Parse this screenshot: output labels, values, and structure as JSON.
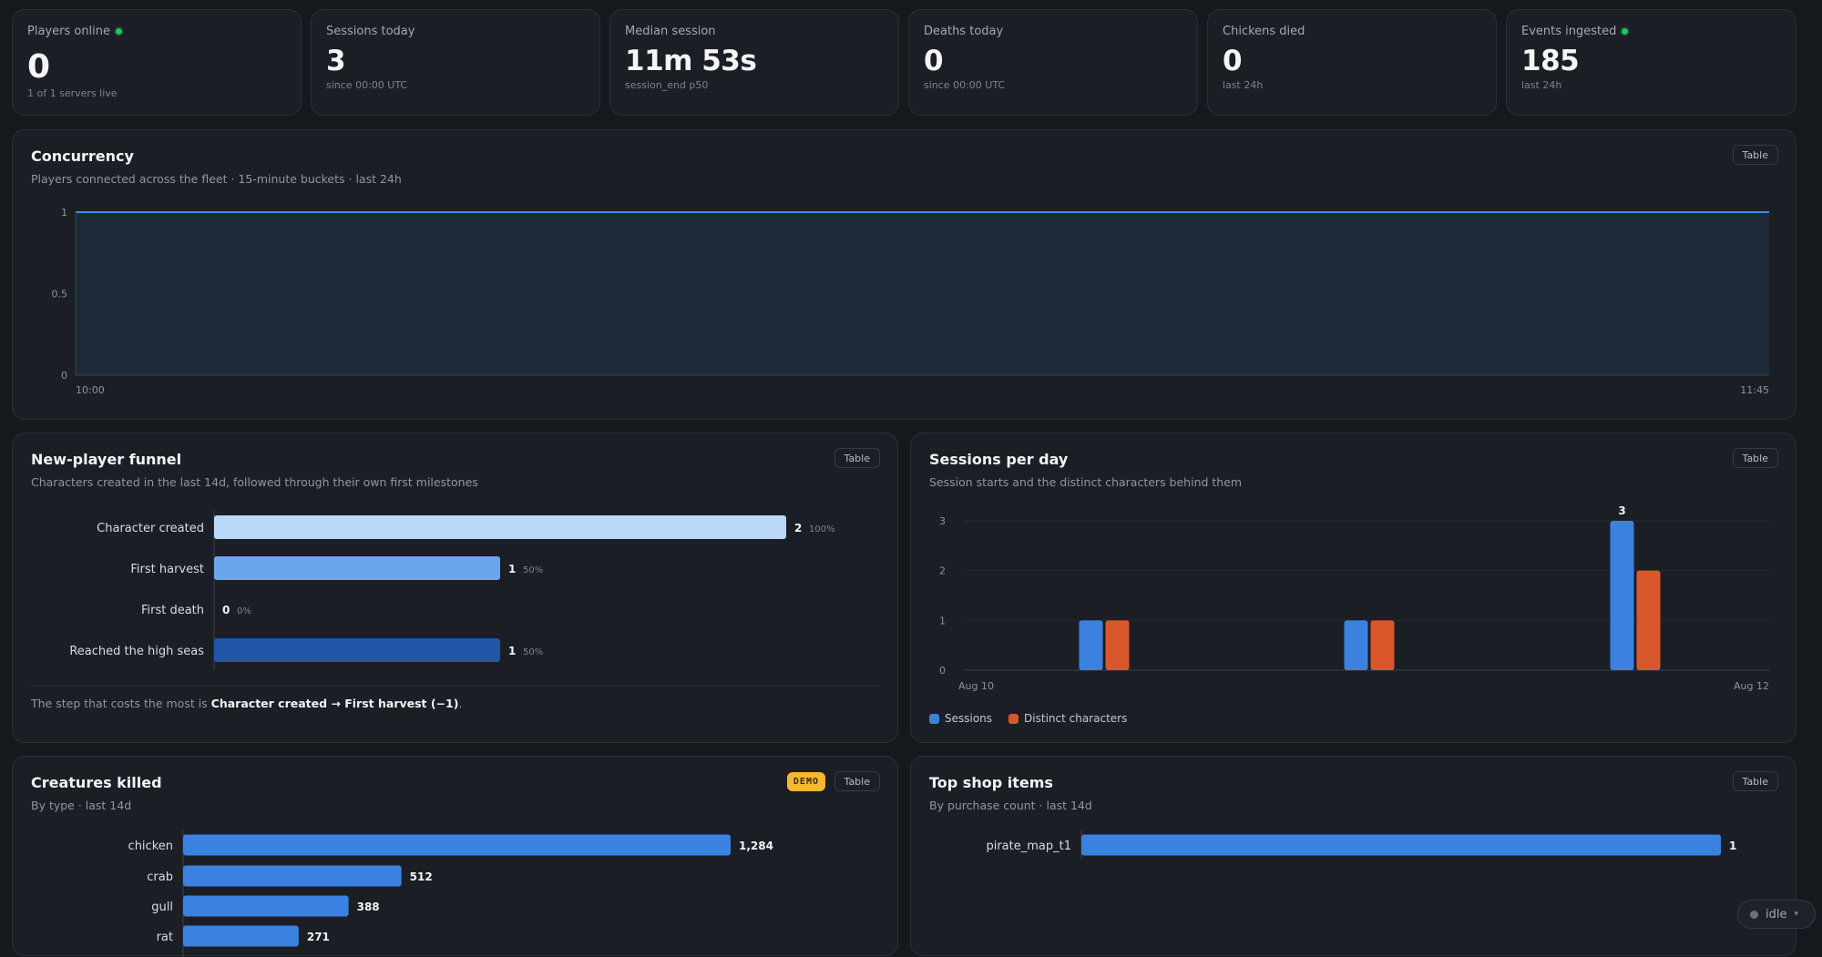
{
  "kpis": [
    {
      "label": "Players online",
      "value": "0",
      "sub": "1 of 1 servers live",
      "live_dot": true
    },
    {
      "label": "Sessions today",
      "value": "3",
      "sub": "since 00:00 UTC",
      "live_dot": false
    },
    {
      "label": "Median session",
      "value": "11m 53s",
      "sub": "session_end p50",
      "live_dot": false
    },
    {
      "label": "Deaths today",
      "value": "0",
      "sub": "since 00:00 UTC",
      "live_dot": false
    },
    {
      "label": "Chickens died",
      "value": "0",
      "sub": "last 24h",
      "live_dot": false
    },
    {
      "label": "Events ingested",
      "value": "185",
      "sub": "last 24h",
      "live_dot": true
    }
  ],
  "concurrency": {
    "title": "Concurrency",
    "subtitle": "Players connected across the fleet · 15-minute buckets · last 24h",
    "table_label": "Table"
  },
  "funnel": {
    "title": "New-player funnel",
    "subtitle": "Characters created in the last 14d, followed through their own first milestones",
    "table_label": "Table",
    "note_prefix": "The step that costs the most is ",
    "note_bold": "Character created → First harvest (−1)",
    "note_suffix": "."
  },
  "sessions": {
    "title": "Sessions per day",
    "subtitle": "Session starts and the distinct characters behind them",
    "table_label": "Table",
    "legend": [
      {
        "label": "Sessions",
        "color": "#3b82e0"
      },
      {
        "label": "Distinct characters",
        "color": "#d9572b"
      }
    ]
  },
  "creatures": {
    "title": "Creatures killed",
    "subtitle": "By type · last 14d",
    "table_label": "Table",
    "badge": "DEMO"
  },
  "shop": {
    "title": "Top shop items",
    "subtitle": "By purchase count · last 14d",
    "table_label": "Table"
  },
  "status": {
    "label": "idle"
  },
  "colors": {
    "accent_blue": "#3b82e0",
    "accent_orange": "#d9572b",
    "live_green": "#22c55e",
    "demo_yellow": "#f5b82e"
  },
  "chart_data": [
    {
      "id": "concurrency",
      "type": "area",
      "x_start": "10:00",
      "x_end": "11:45",
      "x_ticks": [
        "10:00",
        "11:45"
      ],
      "y_ticks": [
        "0",
        "0.5",
        "1"
      ],
      "ylim": [
        0,
        1
      ],
      "values": [
        1,
        1,
        1,
        1,
        1,
        1,
        1,
        1
      ],
      "grid": true
    },
    {
      "id": "funnel",
      "type": "bar",
      "orientation": "horizontal",
      "categories": [
        "Character created",
        "First harvest",
        "First death",
        "Reached the high seas"
      ],
      "values": [
        2,
        1,
        0,
        1
      ],
      "percents": [
        "100%",
        "50%",
        "0%",
        "50%"
      ],
      "colors": [
        "#b9d7f7",
        "#6aa6ee",
        "#3b82e0",
        "#1f56a8"
      ]
    },
    {
      "id": "sessions",
      "type": "bar",
      "x_ticks": [
        "Aug 10",
        "Aug 12"
      ],
      "y_ticks": [
        "0",
        "1",
        "2",
        "3"
      ],
      "ylim": [
        0,
        3
      ],
      "series": [
        {
          "name": "Sessions",
          "values": [
            1,
            1,
            3
          ],
          "color": "#3b82e0"
        },
        {
          "name": "Distinct characters",
          "values": [
            1,
            1,
            2
          ],
          "color": "#d9572b"
        }
      ],
      "max_label": "3",
      "legend": "bottom-left",
      "grid": true
    },
    {
      "id": "creatures",
      "type": "bar",
      "orientation": "horizontal",
      "categories": [
        "chicken",
        "crab",
        "gull",
        "rat"
      ],
      "values": [
        1284,
        512,
        388,
        271
      ],
      "value_labels": [
        "1,284",
        "512",
        "388",
        "271"
      ],
      "color": "#3b82e0"
    },
    {
      "id": "shop",
      "type": "bar",
      "orientation": "horizontal",
      "categories": [
        "pirate_map_t1"
      ],
      "values": [
        1
      ],
      "value_labels": [
        "1"
      ],
      "color": "#3b82e0"
    }
  ]
}
